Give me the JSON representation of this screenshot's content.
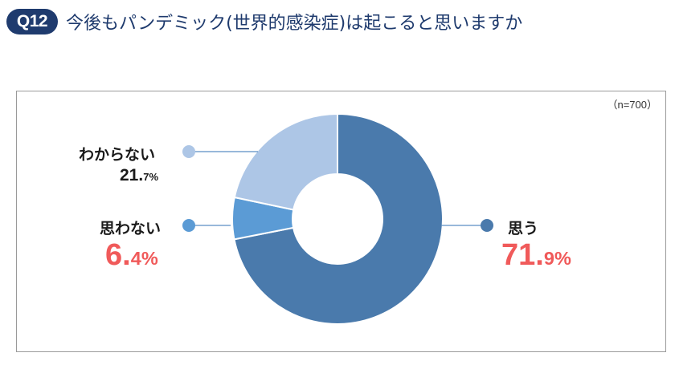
{
  "header": {
    "badge": "Q12",
    "title": "今後もパンデミック(世界的感染症)は起こると思いますか"
  },
  "panel": {
    "sample_size": "（n=700）"
  },
  "chart_data": {
    "type": "pie",
    "title": "今後もパンデミック(世界的感染症)は起こると思いますか",
    "n": 700,
    "unit": "%",
    "slices": [
      {
        "label": "思う",
        "value": 71.9,
        "display_int": "71.",
        "display_dec": "9",
        "color": "#4a7aac"
      },
      {
        "label": "思わない",
        "value": 6.4,
        "display_int": "6.",
        "display_dec": "4",
        "color": "#5b9bd5"
      },
      {
        "label": "わからない",
        "value": 21.7,
        "display_int": "21.",
        "display_dec": "7",
        "color": "#adc6e6"
      }
    ]
  },
  "colors": {
    "leader_line": "#5b8ec4",
    "highlight_percent": "#f05a5a",
    "badge": "#1f3b6e"
  }
}
